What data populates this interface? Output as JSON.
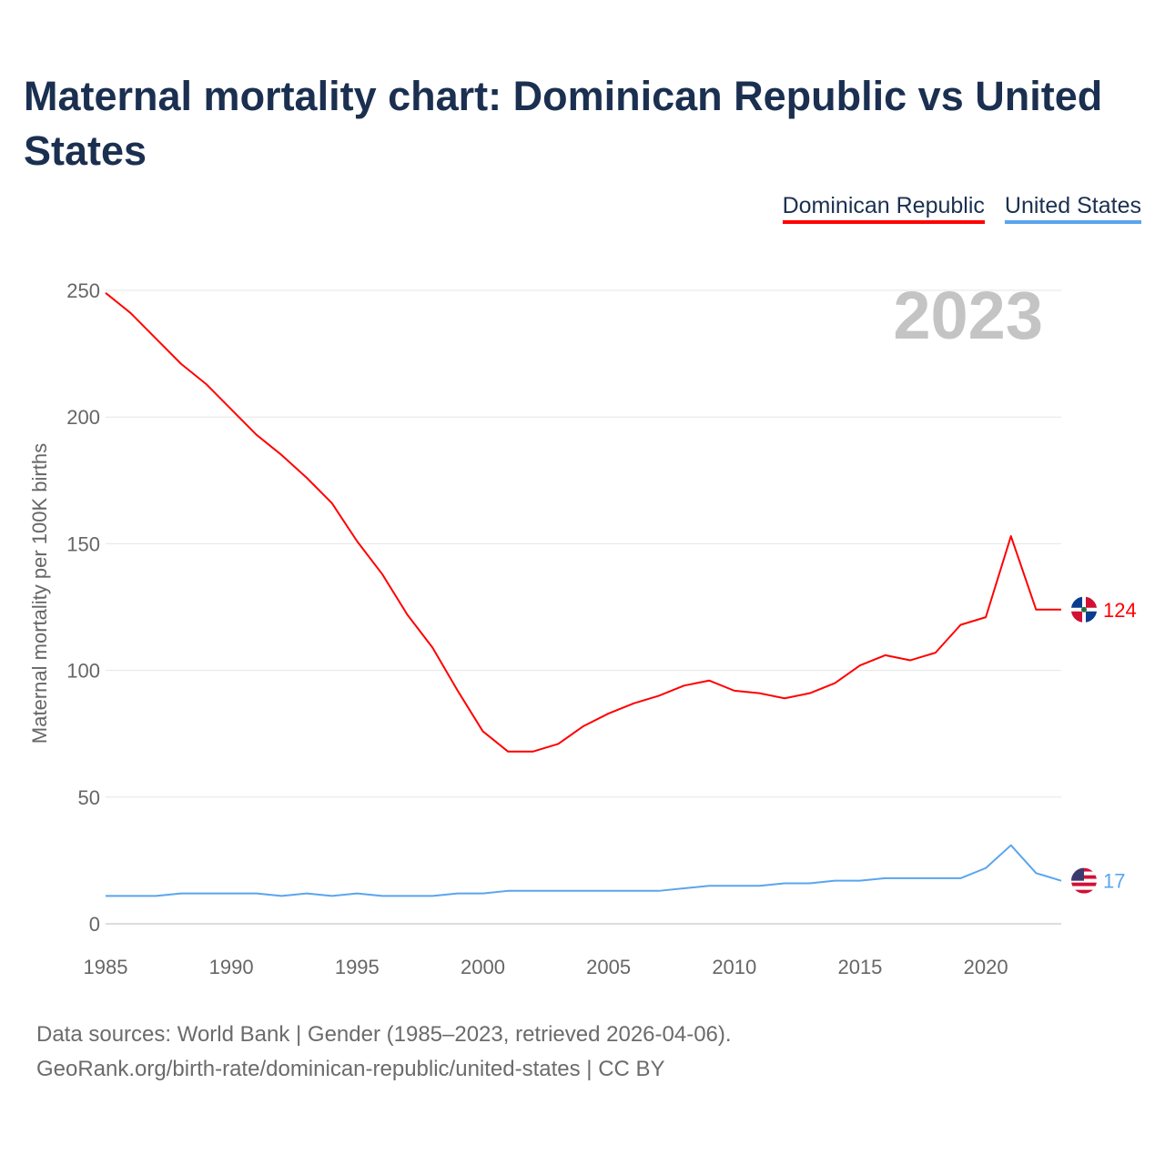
{
  "title": "Maternal mortality chart: Dominican Republic vs United States",
  "source_lines": [
    "Data sources: World Bank | Gender (1985–2023, retrieved 2026-04-06).",
    "GeoRank.org/birth-rate/dominican-republic/united-states | CC BY"
  ],
  "chart_data": {
    "type": "line",
    "title": "Maternal mortality chart: Dominican Republic vs United States",
    "xlabel": "",
    "ylabel": "Maternal mortality per 100K births",
    "year_label": "2023",
    "xlim": [
      1985,
      2023
    ],
    "ylim": [
      0,
      250
    ],
    "x_ticks": [
      1985,
      1990,
      1995,
      2000,
      2005,
      2010,
      2015,
      2020
    ],
    "y_ticks": [
      0,
      50,
      100,
      150,
      200,
      250
    ],
    "grid": true,
    "legend_position": "top-right",
    "x": [
      1985,
      1986,
      1987,
      1988,
      1989,
      1990,
      1991,
      1992,
      1993,
      1994,
      1995,
      1996,
      1997,
      1998,
      1999,
      2000,
      2001,
      2002,
      2003,
      2004,
      2005,
      2006,
      2007,
      2008,
      2009,
      2010,
      2011,
      2012,
      2013,
      2014,
      2015,
      2016,
      2017,
      2018,
      2019,
      2020,
      2021,
      2022,
      2023
    ],
    "series": [
      {
        "name": "Dominican Republic",
        "color": "#ff0000",
        "end_label": "124",
        "values": [
          249,
          241,
          231,
          221,
          213,
          203,
          193,
          185,
          176,
          166,
          151,
          138,
          122,
          109,
          92,
          76,
          68,
          68,
          71,
          78,
          83,
          87,
          90,
          94,
          96,
          92,
          91,
          89,
          91,
          95,
          102,
          106,
          104,
          107,
          118,
          121,
          153,
          124,
          124
        ]
      },
      {
        "name": "United States",
        "color": "#5aa5ee",
        "end_label": "17",
        "values": [
          11,
          11,
          11,
          12,
          12,
          12,
          12,
          11,
          12,
          11,
          12,
          11,
          11,
          11,
          12,
          12,
          13,
          13,
          13,
          13,
          13,
          13,
          13,
          14,
          15,
          15,
          15,
          16,
          16,
          17,
          17,
          18,
          18,
          18,
          18,
          22,
          31,
          20,
          17
        ]
      }
    ]
  }
}
